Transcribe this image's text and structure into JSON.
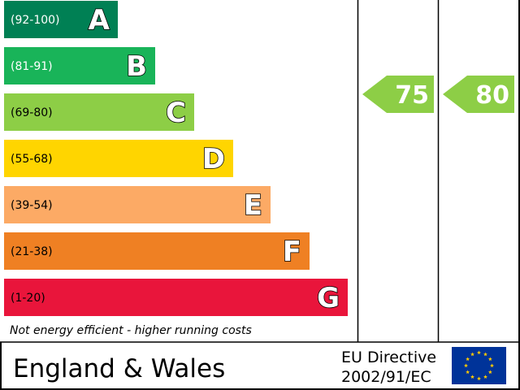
{
  "chart_data": {
    "type": "bar",
    "bands": [
      {
        "letter": "A",
        "range": "(92-100)",
        "min": 92,
        "max": 100,
        "color": "#008054"
      },
      {
        "letter": "B",
        "range": "(81-91)",
        "min": 81,
        "max": 91,
        "color": "#19b459"
      },
      {
        "letter": "C",
        "range": "(69-80)",
        "min": 69,
        "max": 80,
        "color": "#8dce46"
      },
      {
        "letter": "D",
        "range": "(55-68)",
        "min": 55,
        "max": 68,
        "color": "#ffd500"
      },
      {
        "letter": "E",
        "range": "(39-54)",
        "min": 39,
        "max": 54,
        "color": "#fcaa65"
      },
      {
        "letter": "F",
        "range": "(21-38)",
        "min": 21,
        "max": 38,
        "color": "#ef8023"
      },
      {
        "letter": "G",
        "range": "(1-20)",
        "min": 1,
        "max": 20,
        "color": "#e9153b"
      }
    ],
    "current": {
      "value": 75,
      "band": "C",
      "color": "#8dce46"
    },
    "potential": {
      "value": 80,
      "band": "C",
      "color": "#8dce46"
    },
    "footnote": "Not energy efficient - higher running costs"
  },
  "footer": {
    "region": "England & Wales",
    "directive_line1": "EU Directive",
    "directive_line2": "2002/91/EC"
  },
  "colors": {
    "border": "#000000",
    "eu_flag_blue": "#003399",
    "eu_star_yellow": "#ffcc00"
  }
}
